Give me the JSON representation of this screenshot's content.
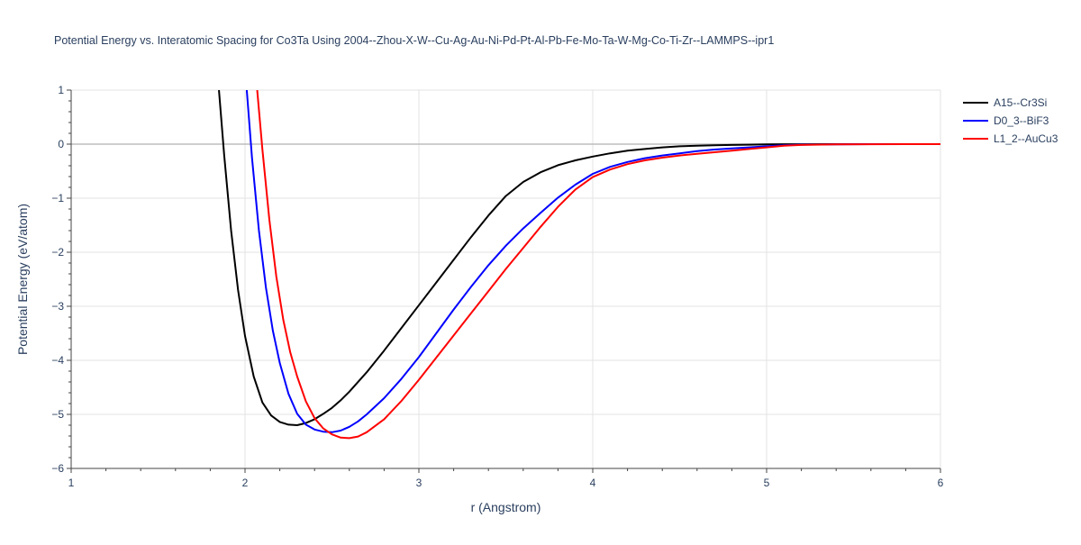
{
  "colors": {
    "grid": "#e3e3e3",
    "zero_line": "#bdbdbd",
    "axis": "#444444",
    "text": "#2a3f5f"
  },
  "chart_data": {
    "type": "line",
    "title": "Potential Energy vs. Interatomic Spacing for Co3Ta Using 2004--Zhou-X-W--Cu-Ag-Au-Ni-Pd-Pt-Al-Pb-Fe-Mo-Ta-W-Mg-Co-Ti-Zr--LAMMPS--ipr1",
    "xlabel": "r (Angstrom)",
    "ylabel": "Potential Energy (eV/atom)",
    "xlim": [
      1,
      6
    ],
    "ylim": [
      -6,
      1
    ],
    "x_ticks": [
      1,
      2,
      3,
      4,
      5,
      6
    ],
    "x_tick_labels": [
      "1",
      "2",
      "3",
      "4",
      "5",
      "6"
    ],
    "y_ticks": [
      -6,
      -5,
      -4,
      -3,
      -2,
      -1,
      0,
      1
    ],
    "y_tick_labels": [
      "−6",
      "−5",
      "−4",
      "−3",
      "−2",
      "−1",
      "0",
      "1"
    ],
    "grid": true,
    "legend_position": "top-right",
    "series": [
      {
        "name": "A15--Cr3Si",
        "color": "#000000",
        "x": [
          1.85,
          1.88,
          1.92,
          1.96,
          2.0,
          2.05,
          2.1,
          2.15,
          2.2,
          2.25,
          2.3,
          2.35,
          2.4,
          2.45,
          2.5,
          2.55,
          2.6,
          2.7,
          2.8,
          2.9,
          3.0,
          3.1,
          3.2,
          3.3,
          3.4,
          3.5,
          3.6,
          3.7,
          3.8,
          3.9,
          4.0,
          4.1,
          4.2,
          4.3,
          4.4,
          4.5,
          4.6,
          4.7,
          4.8,
          4.9,
          5.0,
          5.1,
          5.2,
          5.4,
          5.6,
          5.8,
          6.0
        ],
        "y": [
          1.0,
          -0.2,
          -1.6,
          -2.7,
          -3.55,
          -4.3,
          -4.78,
          -5.02,
          -5.14,
          -5.19,
          -5.2,
          -5.16,
          -5.09,
          -4.99,
          -4.88,
          -4.74,
          -4.58,
          -4.22,
          -3.82,
          -3.4,
          -2.98,
          -2.56,
          -2.14,
          -1.72,
          -1.32,
          -0.96,
          -0.7,
          -0.52,
          -0.39,
          -0.3,
          -0.23,
          -0.17,
          -0.12,
          -0.09,
          -0.06,
          -0.04,
          -0.03,
          -0.02,
          -0.015,
          -0.01,
          -0.005,
          -0.003,
          -0.002,
          -0.001,
          0.0,
          0.0,
          0.0
        ]
      },
      {
        "name": "D0_3--BiF3",
        "color": "#0000ff",
        "x": [
          2.01,
          2.04,
          2.08,
          2.12,
          2.16,
          2.2,
          2.25,
          2.3,
          2.35,
          2.4,
          2.45,
          2.5,
          2.55,
          2.6,
          2.65,
          2.7,
          2.8,
          2.9,
          3.0,
          3.1,
          3.2,
          3.3,
          3.4,
          3.5,
          3.6,
          3.7,
          3.8,
          3.9,
          4.0,
          4.1,
          4.2,
          4.3,
          4.4,
          4.5,
          4.6,
          4.7,
          4.8,
          4.9,
          5.0,
          5.1,
          5.2,
          5.4,
          5.6,
          5.8,
          6.0
        ],
        "y": [
          1.0,
          -0.25,
          -1.6,
          -2.65,
          -3.45,
          -4.05,
          -4.62,
          -4.99,
          -5.19,
          -5.28,
          -5.32,
          -5.33,
          -5.3,
          -5.23,
          -5.13,
          -5.0,
          -4.7,
          -4.34,
          -3.94,
          -3.5,
          -3.06,
          -2.64,
          -2.24,
          -1.88,
          -1.56,
          -1.27,
          -0.99,
          -0.75,
          -0.55,
          -0.42,
          -0.33,
          -0.26,
          -0.21,
          -0.17,
          -0.13,
          -0.1,
          -0.08,
          -0.06,
          -0.04,
          -0.02,
          -0.01,
          -0.004,
          -0.001,
          0.0,
          0.0
        ]
      },
      {
        "name": "L1_2--AuCu3",
        "color": "#ff0000",
        "x": [
          2.07,
          2.1,
          2.14,
          2.18,
          2.22,
          2.26,
          2.3,
          2.35,
          2.4,
          2.45,
          2.5,
          2.55,
          2.6,
          2.65,
          2.7,
          2.8,
          2.9,
          3.0,
          3.1,
          3.2,
          3.3,
          3.4,
          3.5,
          3.6,
          3.7,
          3.8,
          3.9,
          4.0,
          4.1,
          4.2,
          4.3,
          4.4,
          4.5,
          4.6,
          4.7,
          4.8,
          4.9,
          5.0,
          5.1,
          5.2,
          5.4,
          5.6,
          5.8,
          6.0
        ],
        "y": [
          1.0,
          -0.1,
          -1.4,
          -2.45,
          -3.25,
          -3.85,
          -4.3,
          -4.76,
          -5.07,
          -5.26,
          -5.37,
          -5.43,
          -5.44,
          -5.41,
          -5.33,
          -5.09,
          -4.75,
          -4.36,
          -3.95,
          -3.54,
          -3.13,
          -2.72,
          -2.31,
          -1.92,
          -1.53,
          -1.16,
          -0.84,
          -0.61,
          -0.47,
          -0.37,
          -0.3,
          -0.25,
          -0.21,
          -0.18,
          -0.15,
          -0.12,
          -0.09,
          -0.06,
          -0.03,
          -0.015,
          -0.005,
          -0.002,
          0.0,
          0.0
        ]
      }
    ]
  }
}
